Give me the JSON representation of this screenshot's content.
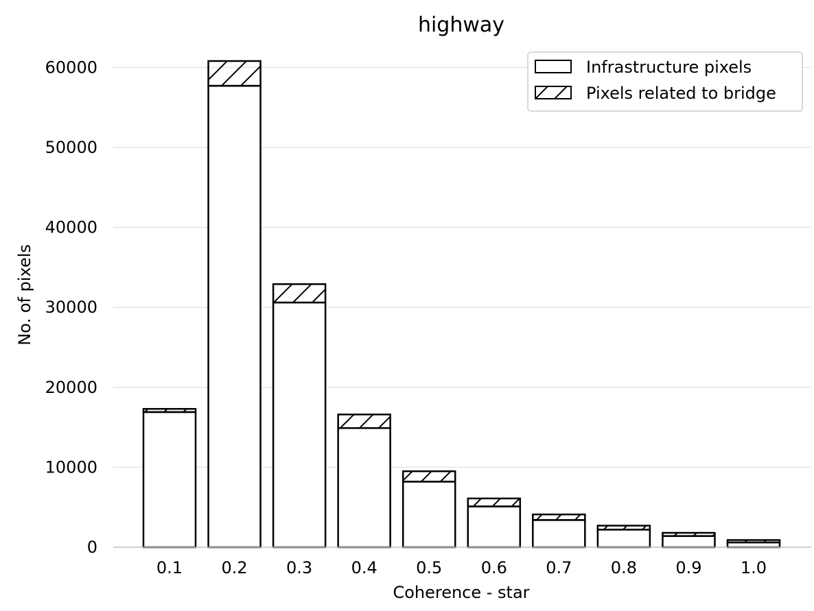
{
  "chart_data": {
    "type": "bar",
    "stacked": true,
    "title": "highway",
    "xlabel": "Coherence - star",
    "ylabel": "No. of pixels",
    "categories": [
      "0.1",
      "0.2",
      "0.3",
      "0.4",
      "0.5",
      "0.6",
      "0.7",
      "0.8",
      "0.9",
      "1.0"
    ],
    "series": [
      {
        "name": "Infrastructure pixels",
        "pattern": "none",
        "values": [
          16900,
          57700,
          30600,
          14900,
          8200,
          5100,
          3400,
          2200,
          1400,
          600
        ]
      },
      {
        "name": "Pixels related to bridge",
        "pattern": "hatch",
        "values": [
          400,
          3100,
          2300,
          1700,
          1300,
          1000,
          700,
          500,
          400,
          300
        ]
      }
    ],
    "ylim": [
      0,
      62000
    ],
    "yticks": [
      0,
      10000,
      20000,
      30000,
      40000,
      50000,
      60000
    ],
    "grid": "horizontal",
    "legend_position": "top-right",
    "colors": {
      "fill": "#ffffff",
      "edge": "#000000",
      "grid": "#e6e6e6"
    }
  }
}
